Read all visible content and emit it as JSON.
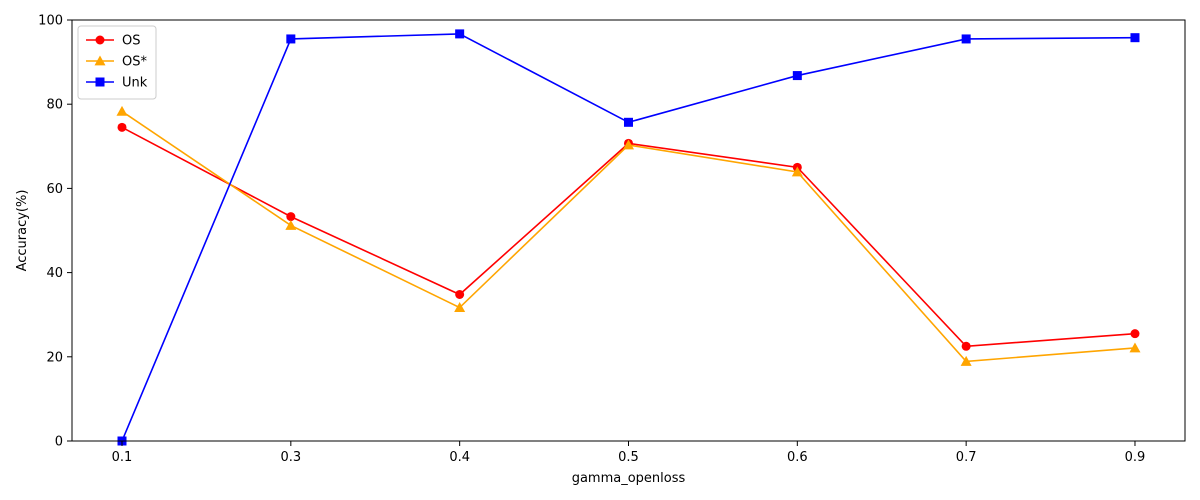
{
  "chart_data": {
    "type": "line",
    "title": "",
    "xlabel": "gamma_openloss",
    "ylabel": "Accuracy(%)",
    "categories": [
      "0.1",
      "0.3",
      "0.4",
      "0.5",
      "0.6",
      "0.7",
      "0.9"
    ],
    "ylim": [
      0,
      100
    ],
    "yticks": [
      0,
      20,
      40,
      60,
      80,
      100
    ],
    "grid": false,
    "legend_position": "top-left",
    "series": [
      {
        "name": "OS",
        "color": "#ff0000",
        "marker": "circle",
        "values": [
          74.5,
          53.3,
          34.8,
          70.7,
          65.0,
          22.5,
          25.5
        ]
      },
      {
        "name": "OS*",
        "color": "#ffa500",
        "marker": "triangle",
        "values": [
          78.3,
          51.2,
          31.7,
          70.3,
          63.9,
          18.9,
          22.1
        ]
      },
      {
        "name": "Unk",
        "color": "#0000ff",
        "marker": "square",
        "values": [
          0.0,
          95.5,
          96.7,
          75.7,
          86.8,
          95.5,
          95.8
        ]
      }
    ]
  }
}
